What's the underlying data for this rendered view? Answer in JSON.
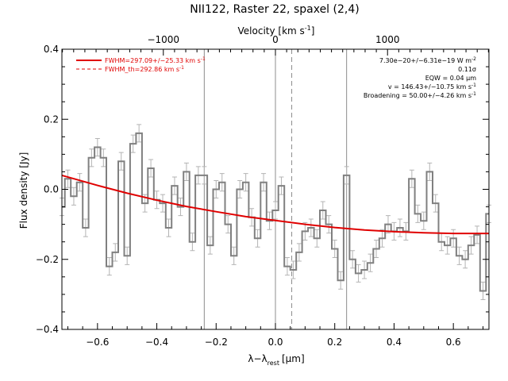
{
  "chart_data": {
    "type": "line",
    "title": "NII122, Raster 22, spaxel (2,4)",
    "xlabel": "λ−λ",
    "xlabel_sub": "rest",
    "xlabel_unit": "[μm]",
    "ylabel": "Flux density [Jy]",
    "top_axis_label": "Velocity [km s",
    "top_axis_label_sup": "-1",
    "top_axis_label_end": "]",
    "xlim": [
      -0.72,
      0.72
    ],
    "ylim": [
      -0.4,
      0.4
    ],
    "x_ticks": [
      -0.6,
      -0.4,
      -0.2,
      0.0,
      0.2,
      0.4,
      0.6
    ],
    "x_tick_labels": [
      "−0.6",
      "−0.4",
      "−0.2",
      "0.0",
      "0.2",
      "0.4",
      "0.6"
    ],
    "y_ticks": [
      -0.4,
      -0.2,
      0.0,
      0.2,
      0.4
    ],
    "y_tick_labels": [
      "−0.4",
      "−0.2",
      "0.0",
      "0.2",
      "0.4"
    ],
    "top_ticks": [
      -1000,
      0,
      1000
    ],
    "top_tick_labels": [
      "−1000",
      "0",
      "1000"
    ],
    "top_tick_positions_x": [
      -0.378,
      0.0,
      0.378
    ],
    "vertical_lines_solid": [
      -0.24,
      0.0,
      0.24
    ],
    "vertical_line_dashed": 0.055,
    "legend": [
      {
        "label": "FWHM=297.09+/−25.33 km s",
        "sup": "-1",
        "style": "solid"
      },
      {
        "label": "FWHM_th=292.86 km s",
        "sup": "-1",
        "style": "dashed"
      }
    ],
    "annotations": [
      {
        "text": "7.30e−20+/−6.31e−19 W m",
        "sup": "-2"
      },
      {
        "text": "0.11σ",
        "sup": ""
      },
      {
        "text": "EQW = 0.04 μm",
        "sup": ""
      },
      {
        "text": "v = 146.43+/−10.75 km s",
        "sup": "-1"
      },
      {
        "text": "Broadening = 50.00+/−4.26 km s",
        "sup": "-1"
      }
    ],
    "series": [
      {
        "style": "histogram",
        "color": "#808080",
        "x": [
          -0.72,
          -0.7,
          -0.68,
          -0.66,
          -0.64,
          -0.62,
          -0.6,
          -0.58,
          -0.56,
          -0.54,
          -0.52,
          -0.5,
          -0.48,
          -0.46,
          -0.44,
          -0.42,
          -0.4,
          -0.38,
          -0.36,
          -0.34,
          -0.32,
          -0.3,
          -0.28,
          -0.26,
          -0.24,
          -0.22,
          -0.2,
          -0.18,
          -0.16,
          -0.14,
          -0.12,
          -0.1,
          -0.08,
          -0.06,
          -0.04,
          -0.02,
          0.0,
          0.02,
          0.04,
          0.06,
          0.08,
          0.1,
          0.12,
          0.14,
          0.16,
          0.18,
          0.2,
          0.22,
          0.24,
          0.26,
          0.28,
          0.3,
          0.32,
          0.34,
          0.36,
          0.38,
          0.4,
          0.42,
          0.44,
          0.46,
          0.48,
          0.5,
          0.52,
          0.54,
          0.56,
          0.58,
          0.6,
          0.62,
          0.64,
          0.66,
          0.68,
          0.7,
          0.72
        ],
        "values": [
          -0.05,
          0.03,
          -0.02,
          0.02,
          -0.11,
          0.09,
          0.12,
          0.09,
          -0.22,
          -0.18,
          0.08,
          -0.19,
          0.13,
          0.16,
          -0.04,
          0.06,
          -0.03,
          -0.04,
          -0.11,
          0.01,
          -0.05,
          0.05,
          -0.15,
          0.04,
          0.04,
          -0.16,
          0.0,
          0.02,
          -0.1,
          -0.19,
          0.0,
          0.02,
          -0.08,
          -0.14,
          0.02,
          -0.09,
          -0.06,
          0.01,
          -0.22,
          -0.23,
          -0.18,
          -0.12,
          -0.11,
          -0.14,
          -0.06,
          -0.1,
          -0.17,
          -0.26,
          0.04,
          -0.2,
          -0.24,
          -0.23,
          -0.21,
          -0.17,
          -0.14,
          -0.1,
          -0.12,
          -0.11,
          -0.12,
          0.03,
          -0.07,
          -0.09,
          0.05,
          -0.04,
          -0.15,
          -0.16,
          -0.14,
          -0.19,
          -0.2,
          -0.16,
          -0.13,
          -0.29,
          -0.07
        ],
        "errors": 0.025
      },
      {
        "style": "line",
        "color": "#e00000",
        "x": [
          -0.72,
          -0.6,
          -0.5,
          -0.4,
          -0.3,
          -0.2,
          -0.1,
          0.0,
          0.1,
          0.2,
          0.3,
          0.4,
          0.5,
          0.6,
          0.72
        ],
        "values": [
          0.04,
          0.011,
          -0.011,
          -0.031,
          -0.049,
          -0.064,
          -0.078,
          -0.089,
          -0.1,
          -0.109,
          -0.116,
          -0.121,
          -0.124,
          -0.126,
          -0.126
        ]
      }
    ],
    "grid": false,
    "legend_placement": "top-left"
  }
}
